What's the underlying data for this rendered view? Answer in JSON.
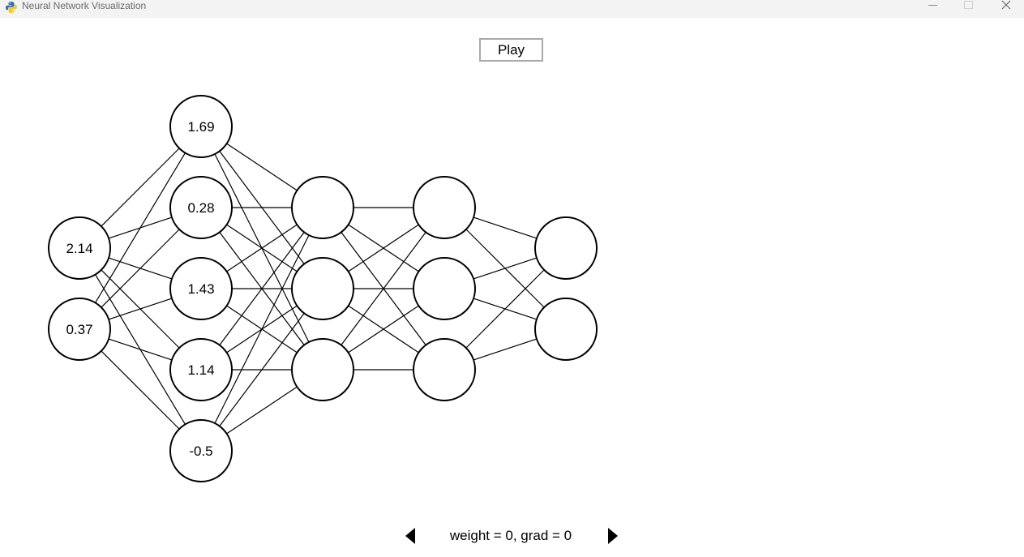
{
  "window": {
    "title": "Neural Network Visualization",
    "icon": "python-icon"
  },
  "controls": {
    "play_label": "Play",
    "status_text": "weight = 0, grad = 0",
    "prev_icon": "left-arrow-icon",
    "next_icon": "right-arrow-icon"
  },
  "network": {
    "layers": [
      {
        "neurons": [
          "2.14",
          "0.37"
        ]
      },
      {
        "neurons": [
          "1.69",
          "0.28",
          "1.43",
          "1.14",
          "-0.5"
        ]
      },
      {
        "neurons": [
          "",
          "",
          ""
        ]
      },
      {
        "neurons": [
          "",
          "",
          ""
        ]
      },
      {
        "neurons": [
          "",
          ""
        ]
      }
    ]
  },
  "colors": {
    "node_fill": "#ffffff",
    "node_stroke": "#000000",
    "edge": "#000000",
    "button_border": "#a9a9a9"
  }
}
